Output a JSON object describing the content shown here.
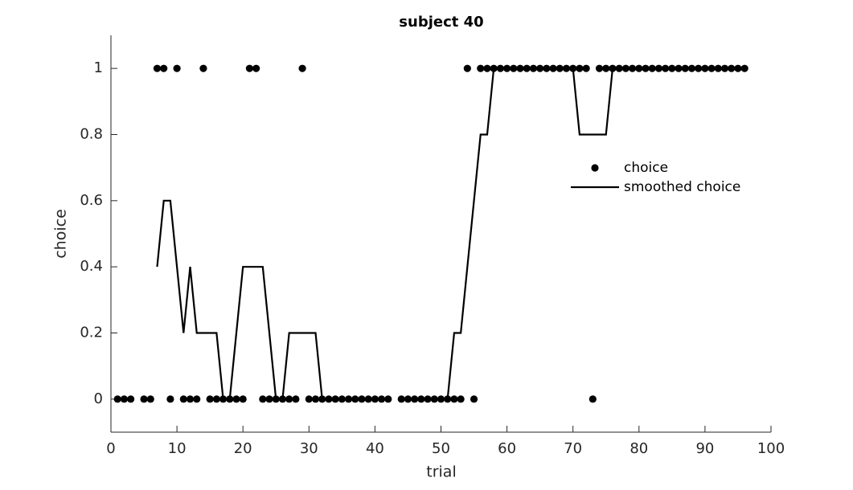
{
  "chart_data": {
    "type": "scatter-line",
    "title": "subject 40",
    "x_label": "trial",
    "y_label": "choice",
    "x": [
      1,
      2,
      3,
      4,
      5,
      6,
      7,
      8,
      9,
      10,
      11,
      12,
      13,
      14,
      15,
      16,
      17,
      18,
      19,
      20,
      21,
      22,
      23,
      24,
      25,
      26,
      27,
      28,
      29,
      30,
      31,
      32,
      33,
      34,
      35,
      36,
      37,
      38,
      39,
      40,
      41,
      42,
      43,
      44,
      45,
      46,
      47,
      48,
      49,
      50,
      51,
      52,
      53,
      54,
      55,
      56,
      57,
      58,
      59,
      60,
      61,
      62,
      63,
      64,
      65,
      66,
      67,
      68,
      69,
      70,
      71,
      72,
      73,
      74,
      75,
      76,
      77,
      78,
      79,
      80,
      81,
      82,
      83,
      84,
      85,
      86,
      87,
      88,
      89,
      90,
      91,
      92,
      93,
      94,
      95,
      96
    ],
    "series": [
      {
        "name": "choice",
        "kind": "scatter",
        "color": "#000000",
        "values": [
          0,
          0,
          0,
          null,
          0,
          0,
          1,
          1,
          0,
          1,
          0,
          0,
          0,
          1,
          0,
          0,
          0,
          0,
          0,
          0,
          1,
          1,
          0,
          0,
          0,
          0,
          0,
          0,
          1,
          0,
          0,
          0,
          0,
          0,
          0,
          0,
          0,
          0,
          0,
          0,
          0,
          0,
          null,
          0,
          0,
          0,
          0,
          0,
          0,
          0,
          0,
          0,
          0,
          1,
          0,
          1,
          1,
          1,
          1,
          1,
          1,
          1,
          1,
          1,
          1,
          1,
          1,
          1,
          1,
          1,
          1,
          1,
          0,
          1,
          1,
          1,
          1,
          1,
          1,
          1,
          1,
          1,
          1,
          1,
          1,
          1,
          1,
          1,
          1,
          1,
          1,
          1,
          1,
          1,
          1,
          1
        ]
      },
      {
        "name": "smoothed choice",
        "kind": "line",
        "color": "#000000",
        "values": [
          null,
          null,
          null,
          null,
          null,
          null,
          0.4,
          0.6,
          0.6,
          0.4,
          0.2,
          0.4,
          0.2,
          0.2,
          0.2,
          0.2,
          0,
          0,
          0.2,
          0.4,
          0.4,
          0.4,
          0.4,
          0.2,
          0,
          0,
          0.2,
          0.2,
          0.2,
          0.2,
          0.2,
          0,
          0,
          0,
          0,
          0,
          0,
          0,
          0,
          0,
          null,
          null,
          null,
          null,
          null,
          0,
          0,
          0,
          0,
          0,
          0,
          0.2,
          0.2,
          0.4,
          0.6,
          0.8,
          0.8,
          1,
          1,
          1,
          1,
          1,
          1,
          1,
          1,
          1,
          1,
          1,
          1,
          1,
          0.8,
          0.8,
          0.8,
          0.8,
          0.8,
          1,
          1,
          1,
          1,
          1,
          1,
          1,
          1,
          1,
          1,
          1,
          1,
          1,
          1,
          1,
          1,
          1,
          1,
          1,
          null,
          null
        ]
      }
    ],
    "xlim": [
      0,
      100
    ],
    "xticks": [
      0,
      10,
      20,
      30,
      40,
      50,
      60,
      70,
      80,
      90,
      100
    ],
    "ylim": [
      -0.1,
      1.1
    ],
    "yticks": [
      0,
      0.2,
      0.4,
      0.6,
      0.8,
      1
    ],
    "legend": "right"
  }
}
